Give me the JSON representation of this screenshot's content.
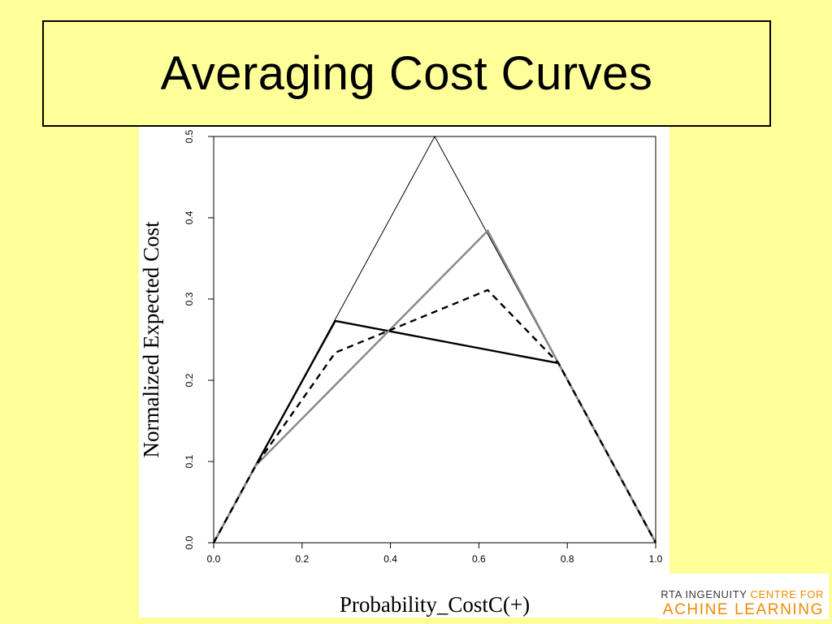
{
  "title": "Averaging Cost Curves",
  "logo": {
    "line1_dark": "RTA INGENUITY",
    "line1_accent": "CENTRE FOR",
    "line2": "ACHINE LEARNING",
    "accent_color": "#f08a00"
  },
  "chart_data": {
    "type": "line",
    "title": "",
    "xlabel": "Probability_CostC(+)",
    "ylabel": "Normalized Expected Cost",
    "xlim": [
      0.0,
      1.0
    ],
    "ylim": [
      0.0,
      0.5
    ],
    "xticks": [
      "0.0",
      "0.2",
      "0.4",
      "0.6",
      "0.8",
      "1.0"
    ],
    "yticks": [
      "0.0",
      "0.1",
      "0.2",
      "0.3",
      "0.4",
      "0.5"
    ],
    "grid": false,
    "legend": "none",
    "series": [
      {
        "x": [
          0.0,
          0.5,
          1.0
        ],
        "y": [
          0.0,
          0.5,
          0.0
        ],
        "color": "#000000",
        "style": "thin"
      },
      {
        "x": [
          0.0,
          0.095,
          0.275,
          0.78,
          1.0
        ],
        "y": [
          0.0,
          0.095,
          0.273,
          0.221,
          0.0
        ],
        "color": "#000000",
        "style": "solid"
      },
      {
        "x": [
          0.0,
          0.095,
          0.62,
          0.78,
          1.0
        ],
        "y": [
          0.0,
          0.095,
          0.384,
          0.221,
          0.0
        ],
        "color": "#888888",
        "style": "solid"
      },
      {
        "x": [
          0.0,
          0.095,
          0.275,
          0.62,
          0.78,
          1.0
        ],
        "y": [
          0.0,
          0.095,
          0.234,
          0.311,
          0.221,
          0.0
        ],
        "color": "#000000",
        "style": "dashed"
      }
    ]
  }
}
